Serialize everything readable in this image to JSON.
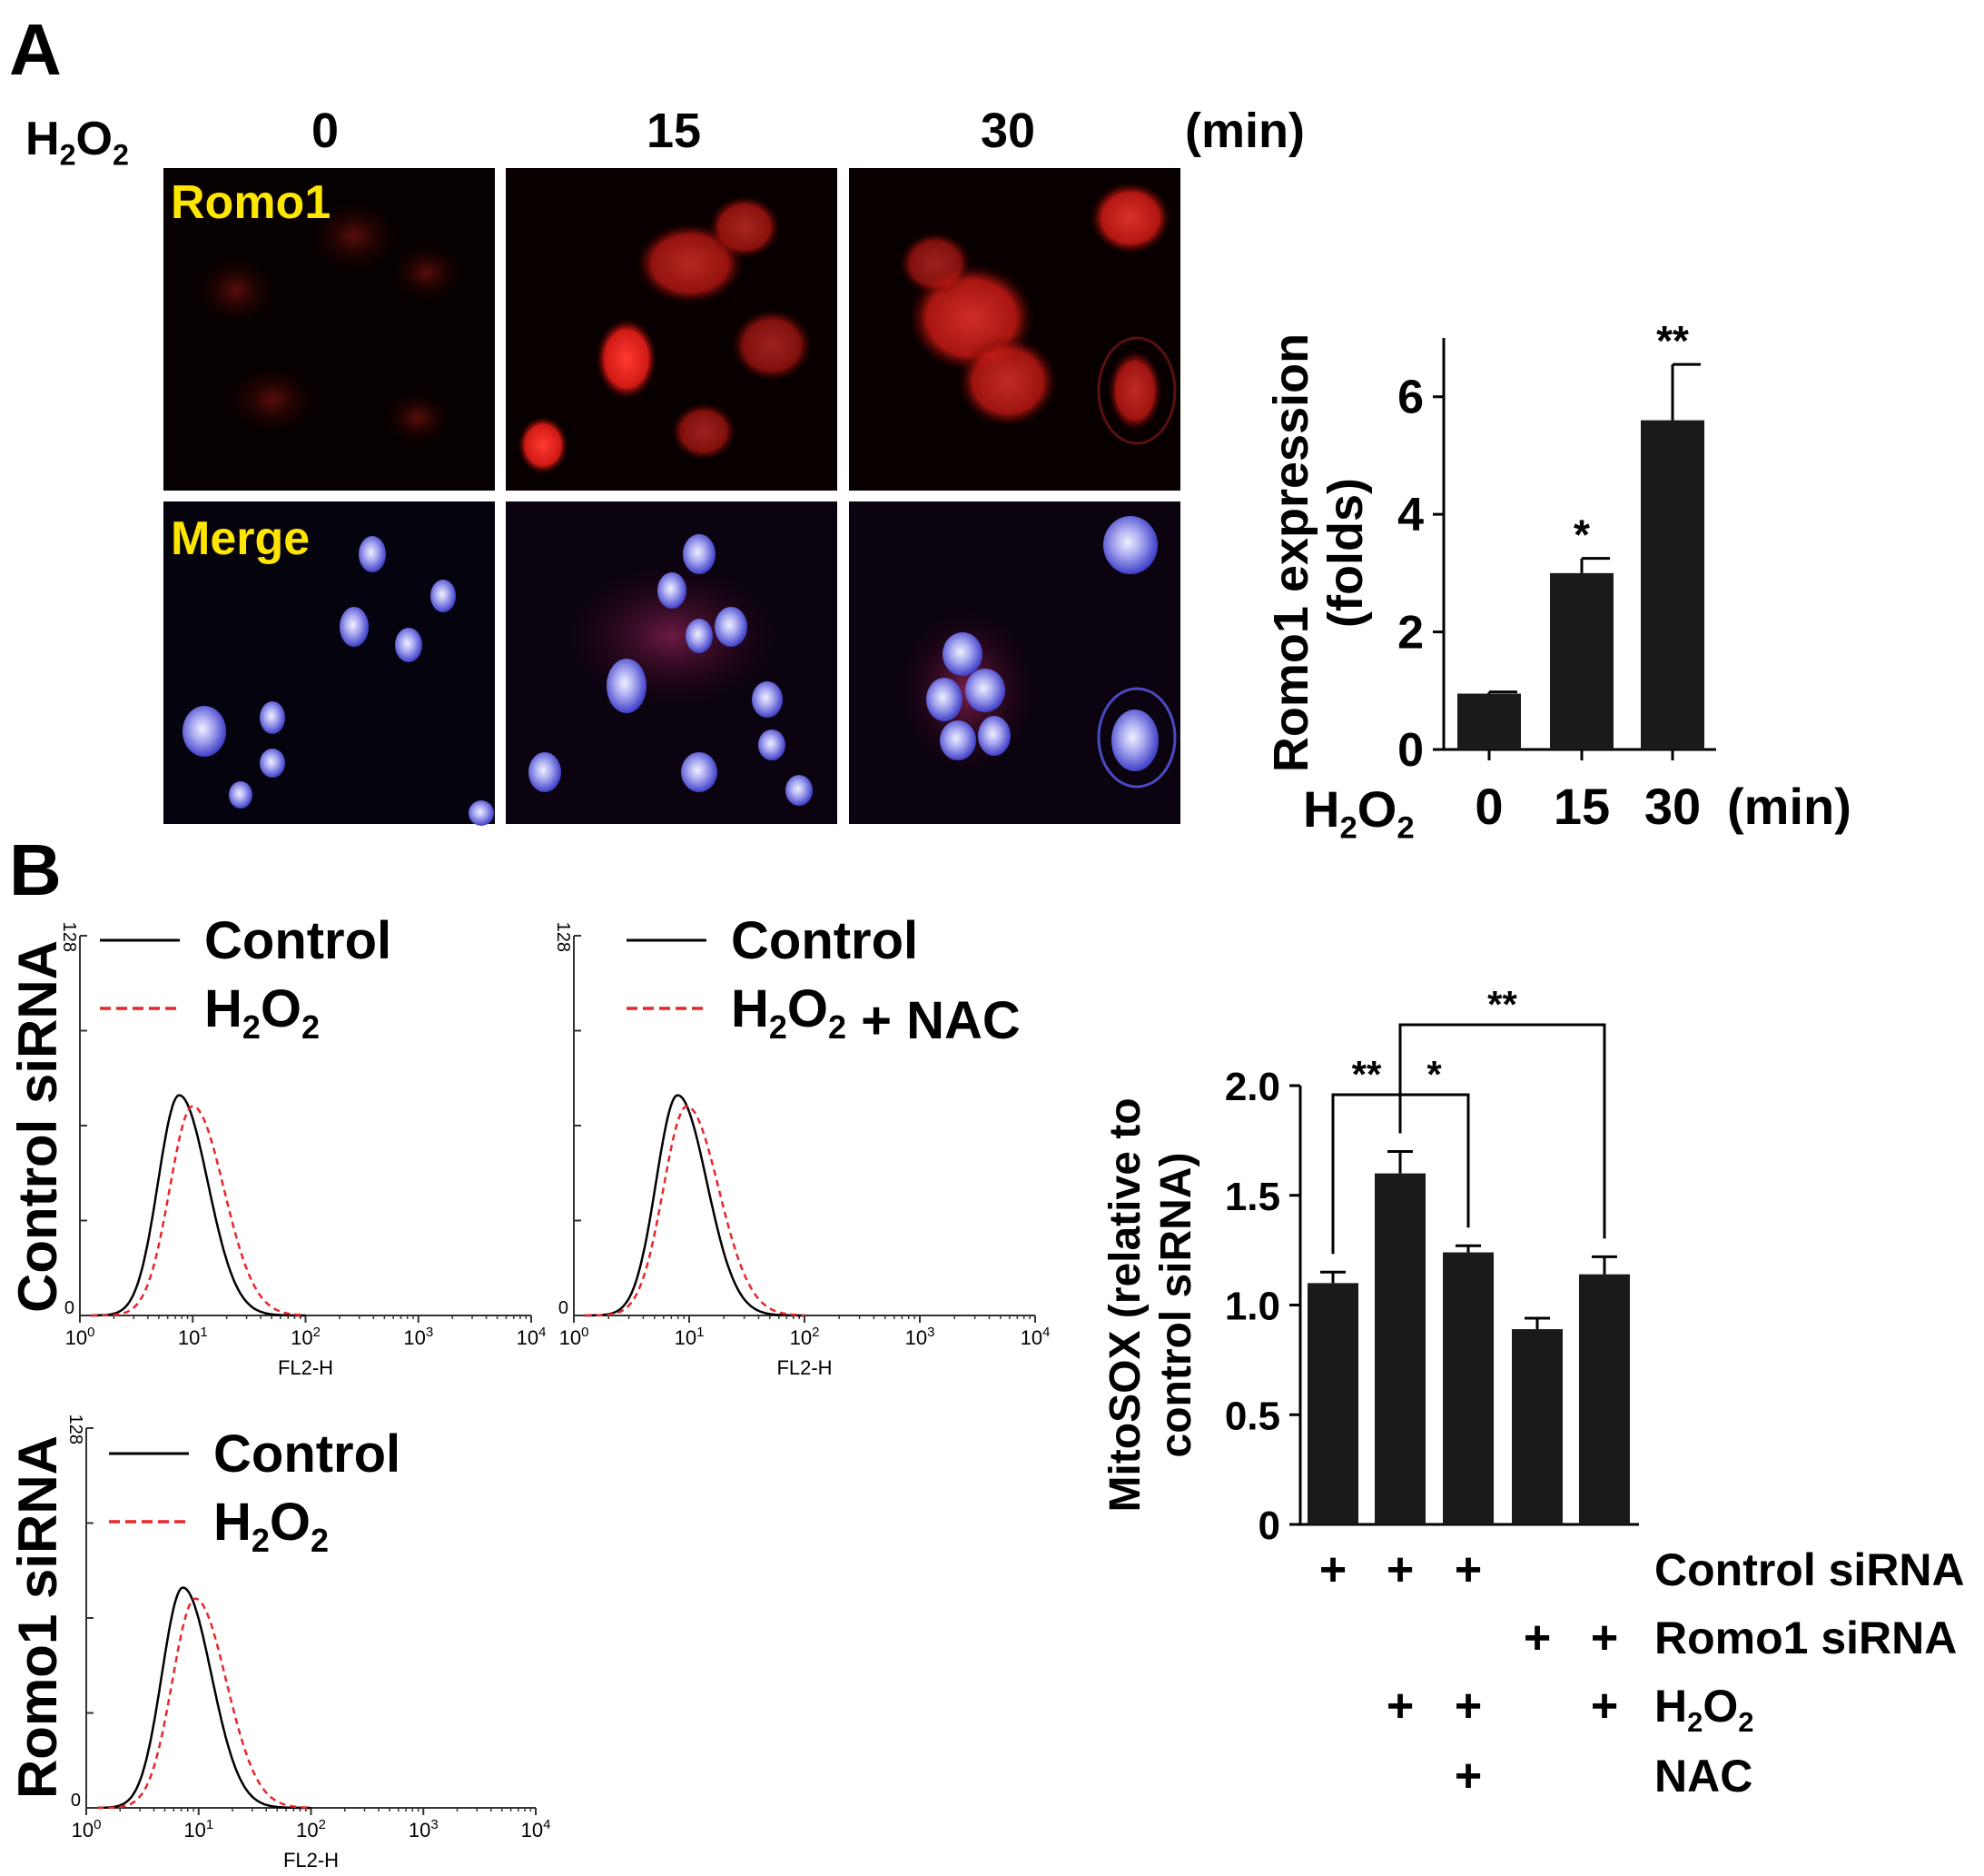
{
  "panel_labels": {
    "a": "A",
    "b": "B"
  },
  "micrograph": {
    "treatment_label": "H2O2",
    "time_unit": "(min)",
    "times": [
      "0",
      "15",
      "30"
    ],
    "row_labels": [
      "Romo1",
      "Merge"
    ],
    "label_color": "#ffe600"
  },
  "flow": {
    "row_labels": [
      "Control siRNA",
      "Romo1 siRNA"
    ],
    "x_label": "FL2-H",
    "x_ticks": [
      "10",
      "10",
      "10",
      "10",
      "10"
    ],
    "x_tick_exp": [
      "0",
      "1",
      "2",
      "3",
      "4"
    ],
    "y_ticks": [
      "0",
      "128"
    ],
    "solid_color": "#000000",
    "dashed_color": "#e8262a",
    "panels": [
      {
        "legend": [
          "Control",
          "H2O2"
        ],
        "solid_peak_log": 0.88,
        "dashed_peak_log": 1.0
      },
      {
        "legend": [
          "Control",
          "H2O2 + NAC"
        ],
        "solid_peak_log": 0.9,
        "dashed_peak_log": 0.98
      },
      {
        "legend": [
          "Control",
          "H2O2"
        ],
        "solid_peak_log": 0.86,
        "dashed_peak_log": 0.97
      }
    ]
  },
  "chart_data": [
    {
      "type": "bar",
      "ylabel": "Romo1 expression (folds)",
      "ylabel_lines": [
        "Romo1 expression",
        "(folds)"
      ],
      "xlabel_prefix": "H2O2",
      "xlabel_unit": "(min)",
      "categories": [
        "0",
        "15",
        "30"
      ],
      "values": [
        0.95,
        3.0,
        5.6
      ],
      "errors": [
        0.03,
        0.25,
        0.95
      ],
      "significance": [
        "",
        "*",
        "**"
      ],
      "ylim": [
        0,
        7
      ],
      "yticks": [
        "0",
        "2",
        "4",
        "6"
      ],
      "bar_color": "#1a1a1a"
    },
    {
      "type": "bar",
      "ylabel": "MitoSOX (relative to control siRNA)",
      "ylabel_lines": [
        "MitoSOX (relative to",
        "control siRNA)"
      ],
      "values": [
        1.1,
        1.6,
        1.24,
        0.89,
        1.14
      ],
      "errors": [
        0.05,
        0.1,
        0.03,
        0.05,
        0.08
      ],
      "ylim": [
        0,
        2.0
      ],
      "yticks": [
        "0",
        "0.5",
        "1.0",
        "1.5",
        "2.0"
      ],
      "bar_color": "#1a1a1a",
      "conditions": [
        {
          "label": "Control siRNA",
          "marks": [
            "+",
            "+",
            "+",
            "",
            ""
          ]
        },
        {
          "label": "Romo1 siRNA",
          "marks": [
            "",
            "",
            "",
            "+",
            "+"
          ]
        },
        {
          "label": "H2O2",
          "marks": [
            "",
            "+",
            "+",
            "",
            "+"
          ]
        },
        {
          "label": "NAC",
          "marks": [
            "",
            "",
            "+",
            "",
            ""
          ]
        }
      ],
      "comparisons": [
        {
          "from": 0,
          "to": 1,
          "label": "**"
        },
        {
          "from": 1,
          "to": 2,
          "label": "*"
        },
        {
          "from": 1,
          "to": 4,
          "label": "**"
        }
      ]
    }
  ]
}
